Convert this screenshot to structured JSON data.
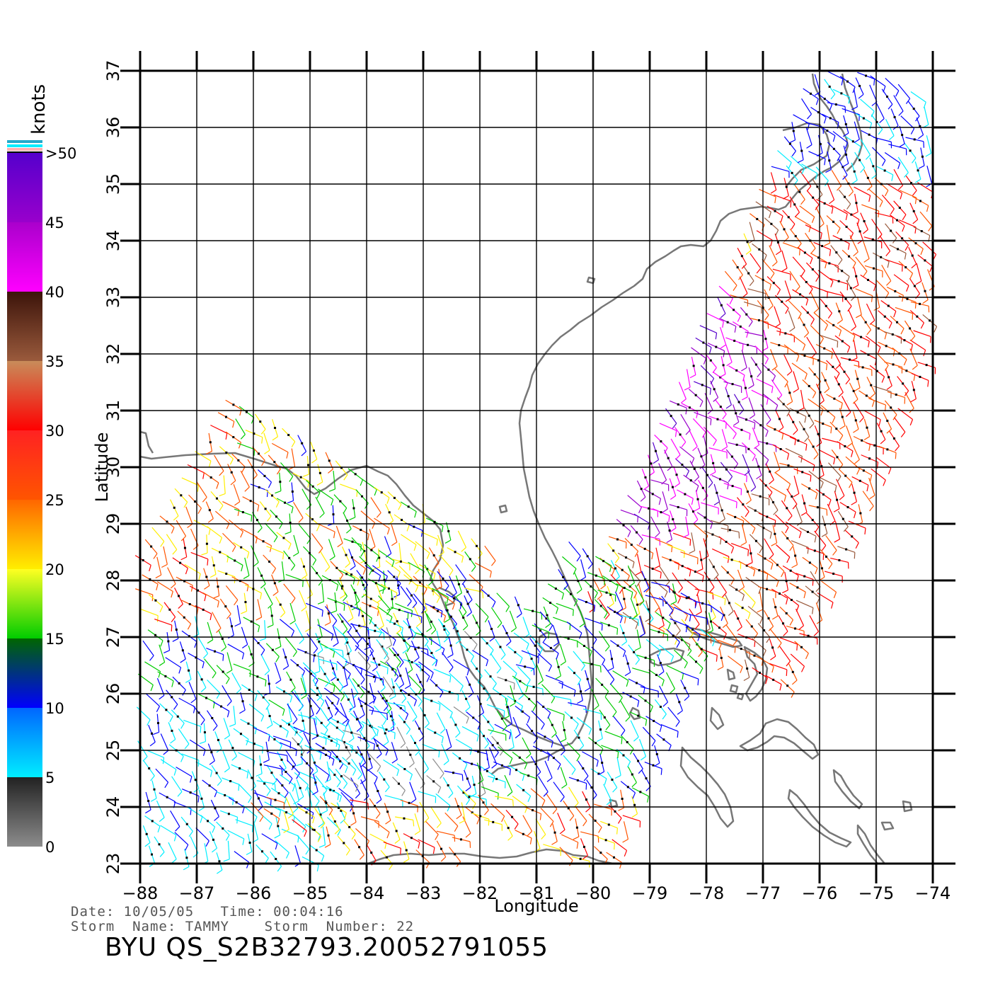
{
  "axes": {
    "xlabel": "Longitude",
    "ylabel": "Latitude",
    "lon_ticks": [
      "-88",
      "-87",
      "-86",
      "-85",
      "-84",
      "-83",
      "-82",
      "-81",
      "-80",
      "-79",
      "-78",
      "-77",
      "-76",
      "-75",
      "-74"
    ],
    "lat_ticks": [
      "23",
      "24",
      "25",
      "26",
      "27",
      "28",
      "29",
      "30",
      "31",
      "32",
      "33",
      "34",
      "35",
      "36",
      "37"
    ],
    "lon_range": [
      -88,
      -74
    ],
    "lat_range": [
      23,
      37
    ]
  },
  "legend": {
    "unit": "knots",
    "labels": [
      "0",
      "5",
      "10",
      "15",
      "20",
      "25",
      "30",
      "35",
      "40",
      "45",
      ">50"
    ],
    "bands": [
      {
        "from": 0,
        "to": 5,
        "top": "#222222",
        "bottom": "#8c8c8c"
      },
      {
        "from": 5,
        "to": 10,
        "top": "#0066ff",
        "bottom": "#00eeff"
      },
      {
        "from": 10,
        "to": 15,
        "top": "#006600",
        "bottom": "#0000ff"
      },
      {
        "from": 15,
        "to": 20,
        "top": "#ffff22",
        "bottom": "#00cc00"
      },
      {
        "from": 20,
        "to": 25,
        "top": "#ff6600",
        "bottom": "#ffee00"
      },
      {
        "from": 25,
        "to": 30,
        "top": "#ff2222",
        "bottom": "#ff5500"
      },
      {
        "from": 30,
        "to": 35,
        "top": "#c88c5a",
        "bottom": "#ff0000"
      },
      {
        "from": 35,
        "to": 40,
        "top": "#3c140a",
        "bottom": "#9a5a3c"
      },
      {
        "from": 40,
        "to": 45,
        "top": "#aa00cc",
        "bottom": "#ff00ff"
      },
      {
        "from": 45,
        "to": 50,
        "top": "#5500cc",
        "bottom": "#9900cc"
      }
    ]
  },
  "info": {
    "line1": "Date: 10/05/05   Time: 00:04:16",
    "line2": "Storm  Name: TAMMY    Storm  Number: 22"
  },
  "title": "BYU  QS_S2B32793.20052791055",
  "coast_color": "#777777"
}
